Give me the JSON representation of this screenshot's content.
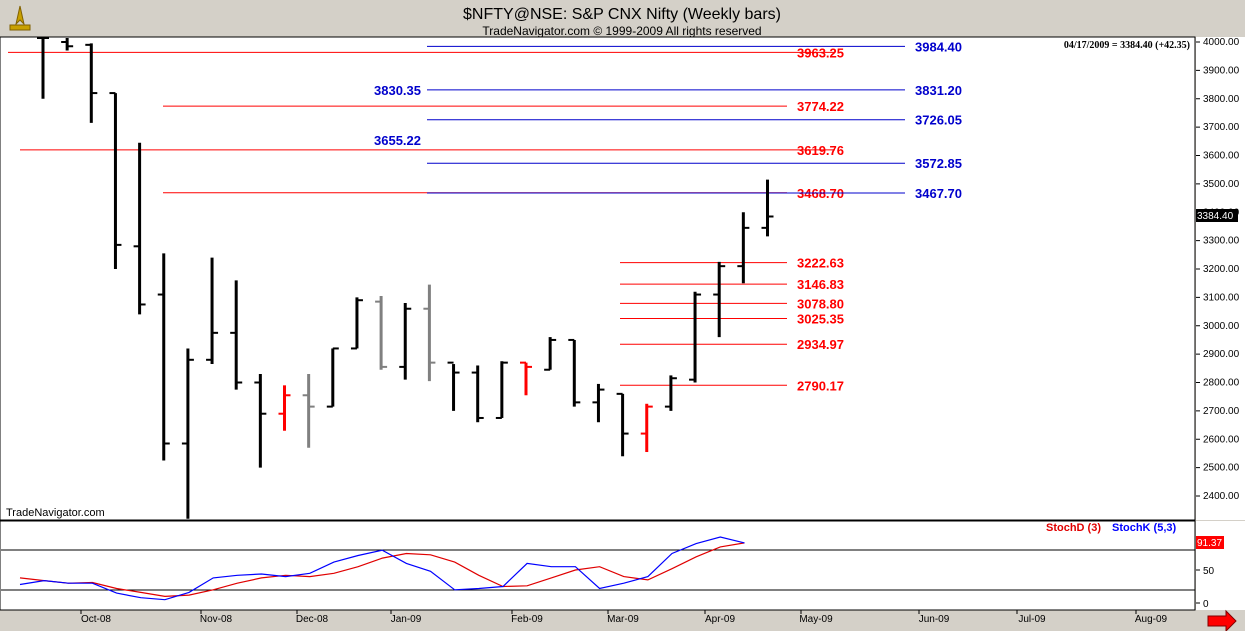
{
  "window": {
    "title": "$NFTY@NSE:  S&P CNX Nifty  (Weekly bars)",
    "copyright": "TradeNavigator.com © 1999-2009 All rights reserved",
    "watermark": "TradeNavigator.com",
    "status": "04/17/2009 = 3384.40 (+42.35)",
    "last_price": "3384.40",
    "stoch_value": "91.37"
  },
  "colors": {
    "background": "#ffffff",
    "up_bar": "#000000",
    "down_bar_red": "#ff0000",
    "gray_bar": "#808080",
    "red_level": "#ff0000",
    "blue_level": "#0000cc",
    "stochD": "#e00000",
    "stochK": "#0000ff",
    "arrow": "#ff0000"
  },
  "chart_data": {
    "type": "bar",
    "price_axis": {
      "ylim": [
        2320,
        4030
      ],
      "ticks": [
        4000,
        3900,
        3800,
        3700,
        3600,
        3500,
        3400,
        3300,
        3200,
        3100,
        3000,
        2900,
        2800,
        2700,
        2600,
        2500,
        2400
      ],
      "tick_labels": [
        "4000.00",
        "3900.00",
        "3800.00",
        "3700.00",
        "3600.00",
        "3500.00",
        "3400.00",
        "3300.00",
        "3200.00",
        "3100.00",
        "3000.00",
        "2900.00",
        "2800.00",
        "2700.00",
        "2600.00",
        "2500.00",
        "2400.00"
      ]
    },
    "x_axis": {
      "labels": [
        "Oct-08",
        "Nov-08",
        "Dec-08",
        "Jan-09",
        "Feb-09",
        "Mar-09",
        "Apr-09",
        "May-09",
        "Jun-09",
        "Jul-09",
        "Aug-09"
      ]
    },
    "bars": [
      {
        "high": 4030,
        "low": 3800,
        "open": 4030,
        "close": 4030,
        "color": "black"
      },
      {
        "high": 4030,
        "low": 3970,
        "open": 4000,
        "close": 3985,
        "color": "black"
      },
      {
        "high": 3995,
        "low": 3715,
        "open": 3990,
        "close": 3820,
        "color": "black"
      },
      {
        "high": 3820,
        "low": 3200,
        "open": 3820,
        "close": 3285,
        "color": "black"
      },
      {
        "high": 3645,
        "low": 3040,
        "open": 3280,
        "close": 3075,
        "color": "black"
      },
      {
        "high": 3255,
        "low": 2525,
        "open": 3110,
        "close": 2585,
        "color": "black"
      },
      {
        "high": 2920,
        "low": 2320,
        "open": 2585,
        "close": 2880,
        "color": "black"
      },
      {
        "high": 3240,
        "low": 2865,
        "open": 2880,
        "close": 2975,
        "color": "black"
      },
      {
        "high": 3160,
        "low": 2775,
        "open": 2975,
        "close": 2800,
        "color": "black"
      },
      {
        "high": 2830,
        "low": 2500,
        "open": 2800,
        "close": 2690,
        "color": "black"
      },
      {
        "high": 2790,
        "low": 2630,
        "open": 2690,
        "close": 2755,
        "color": "red"
      },
      {
        "high": 2830,
        "low": 2570,
        "open": 2755,
        "close": 2715,
        "color": "gray"
      },
      {
        "high": 2920,
        "low": 2715,
        "open": 2715,
        "close": 2920,
        "color": "black"
      },
      {
        "high": 3100,
        "low": 2920,
        "open": 2920,
        "close": 3090,
        "color": "black"
      },
      {
        "high": 3105,
        "low": 2845,
        "open": 3085,
        "close": 2855,
        "color": "gray"
      },
      {
        "high": 3080,
        "low": 2810,
        "open": 2855,
        "close": 3060,
        "color": "black"
      },
      {
        "high": 3145,
        "low": 2805,
        "open": 3060,
        "close": 2870,
        "color": "gray"
      },
      {
        "high": 2865,
        "low": 2700,
        "open": 2870,
        "close": 2835,
        "color": "black"
      },
      {
        "high": 2860,
        "low": 2660,
        "open": 2835,
        "close": 2675,
        "color": "black"
      },
      {
        "high": 2875,
        "low": 2675,
        "open": 2675,
        "close": 2870,
        "color": "black"
      },
      {
        "high": 2870,
        "low": 2755,
        "open": 2870,
        "close": 2855,
        "color": "red"
      },
      {
        "high": 2960,
        "low": 2845,
        "open": 2845,
        "close": 2950,
        "color": "black"
      },
      {
        "high": 2950,
        "low": 2715,
        "open": 2950,
        "close": 2730,
        "color": "black"
      },
      {
        "high": 2795,
        "low": 2660,
        "open": 2730,
        "close": 2775,
        "color": "black"
      },
      {
        "high": 2760,
        "low": 2540,
        "open": 2760,
        "close": 2620,
        "color": "black"
      },
      {
        "high": 2725,
        "low": 2555,
        "open": 2620,
        "close": 2715,
        "color": "red"
      },
      {
        "high": 2825,
        "low": 2700,
        "open": 2715,
        "close": 2815,
        "color": "black"
      },
      {
        "high": 3120,
        "low": 2800,
        "open": 2810,
        "close": 3110,
        "color": "black"
      },
      {
        "high": 3225,
        "low": 2960,
        "open": 3110,
        "close": 3210,
        "color": "black"
      },
      {
        "high": 3400,
        "low": 3150,
        "open": 3210,
        "close": 3345,
        "color": "black"
      },
      {
        "high": 3515,
        "low": 3315,
        "open": 3345,
        "close": 3385,
        "color": "black"
      }
    ],
    "levels": [
      {
        "value": 3984.4,
        "label": "3984.40",
        "color": "blue",
        "side": "right"
      },
      {
        "value": 3963.25,
        "label": "3963.25",
        "color": "red",
        "side": "mid"
      },
      {
        "value": 3831.2,
        "label": "3831.20",
        "color": "blue",
        "side": "right"
      },
      {
        "value": 3830.35,
        "label": "3830.35",
        "color": "blue",
        "side": "left"
      },
      {
        "value": 3774.22,
        "label": "3774.22",
        "color": "red",
        "side": "mid"
      },
      {
        "value": 3726.05,
        "label": "3726.05",
        "color": "blue",
        "side": "right"
      },
      {
        "value": 3655.22,
        "label": "3655.22",
        "color": "blue",
        "side": "left"
      },
      {
        "value": 3619.76,
        "label": "3619.76",
        "color": "red",
        "side": "mid"
      },
      {
        "value": 3572.85,
        "label": "3572.85",
        "color": "blue",
        "side": "right"
      },
      {
        "value": 3468.7,
        "label": "3468.70",
        "color": "red",
        "side": "mid"
      },
      {
        "value": 3467.7,
        "label": "3467.70",
        "color": "blue",
        "side": "right"
      },
      {
        "value": 3222.63,
        "label": "3222.63",
        "color": "red",
        "side": "low"
      },
      {
        "value": 3146.83,
        "label": "3146.83",
        "color": "red",
        "side": "low"
      },
      {
        "value": 3078.8,
        "label": "3078.80",
        "color": "red",
        "side": "low"
      },
      {
        "value": 3025.35,
        "label": "3025.35",
        "color": "red",
        "side": "low"
      },
      {
        "value": 2934.97,
        "label": "2934.97",
        "color": "red",
        "side": "low"
      },
      {
        "value": 2790.17,
        "label": "2790.17",
        "color": "red",
        "side": "low"
      }
    ],
    "stochastic": {
      "ylim": [
        0,
        100
      ],
      "ticks": [
        0,
        50
      ],
      "tick_labels": [
        "0",
        "50"
      ],
      "legend": [
        "StochD (3)",
        "StochK (5,3)"
      ],
      "stochD": [
        38,
        34,
        30,
        31,
        22,
        16,
        10,
        12,
        20,
        30,
        38,
        42,
        40,
        45,
        55,
        68,
        75,
        73,
        62,
        42,
        25,
        26,
        38,
        50,
        55,
        40,
        35,
        52,
        70,
        85,
        91
      ],
      "stochK": [
        28,
        34,
        30,
        30,
        15,
        8,
        5,
        16,
        38,
        42,
        44,
        40,
        45,
        62,
        72,
        80,
        60,
        48,
        20,
        22,
        25,
        60,
        55,
        55,
        22,
        30,
        40,
        75,
        90,
        100,
        91
      ]
    }
  }
}
